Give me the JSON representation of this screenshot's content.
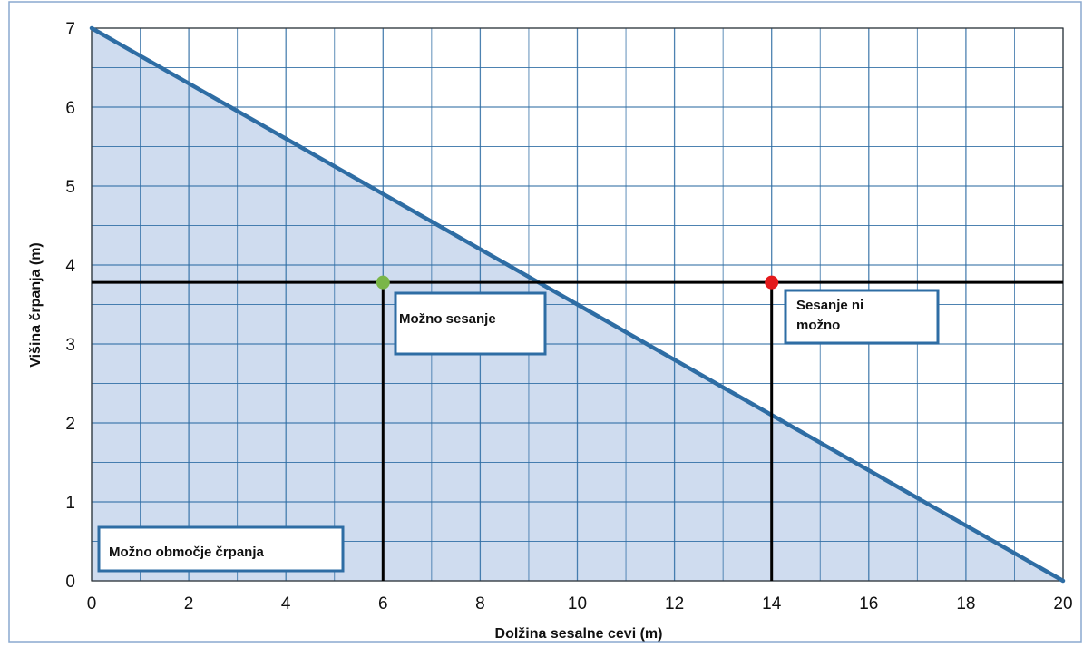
{
  "chart_data": {
    "type": "area",
    "xlabel": "Dolžina sesalne cevi (m)",
    "ylabel": "Višina črpanja (m)",
    "xlim": [
      0,
      20
    ],
    "ylim": [
      0,
      7
    ],
    "x_ticks": [
      0,
      2,
      4,
      6,
      8,
      10,
      12,
      14,
      16,
      18,
      20
    ],
    "y_ticks": [
      0,
      1,
      2,
      3,
      4,
      5,
      6,
      7
    ],
    "minor_grid_step_x": 1,
    "minor_grid_step_y": 0.5,
    "grid": true,
    "series": [
      {
        "x": [
          0,
          20
        ],
        "y": [
          7,
          0
        ],
        "color": "#2e6da4",
        "fill": "#cfdcef"
      }
    ],
    "reference_lines": {
      "horizontal_y": 3.78,
      "vertical_x": [
        6,
        14
      ],
      "color": "#000000"
    },
    "points": [
      {
        "x": 6,
        "y": 3.78,
        "color": "#7ab648"
      },
      {
        "x": 14,
        "y": 3.78,
        "color": "#e41a1c"
      }
    ],
    "annotations": [
      {
        "text": "Možno sesanje",
        "lines": [
          "Možno sesanje"
        ]
      },
      {
        "text": "Sesanje ni možno",
        "lines": [
          "Sesanje ni",
          "možno"
        ]
      },
      {
        "text": "Možno območje črpanja",
        "lines": [
          "Možno območje črpanja"
        ]
      }
    ],
    "colors": {
      "grid": "#2e6da4",
      "line": "#2e6da4",
      "fill": "#cfdcef",
      "box_border": "#2e6da4",
      "frame": "#8aa9cf"
    }
  }
}
